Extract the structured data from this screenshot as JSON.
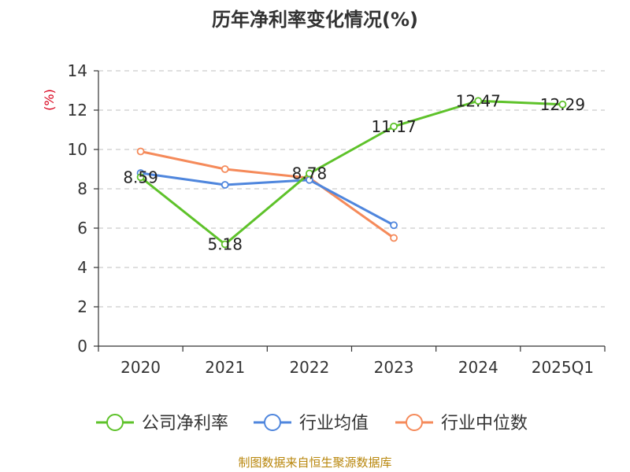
{
  "chart_data": {
    "type": "line",
    "title": "历年净利率变化情况(%)",
    "ylabel": "(%)",
    "categories": [
      "2020",
      "2021",
      "2022",
      "2023",
      "2024",
      "2025Q1"
    ],
    "ylim": [
      0,
      14
    ],
    "yticks": [
      0,
      2,
      4,
      6,
      8,
      10,
      12,
      14
    ],
    "grid": true,
    "legend_position": "bottom",
    "series": [
      {
        "name": "公司净利率",
        "color": "#5ec22a",
        "values": [
          8.59,
          5.18,
          8.78,
          11.17,
          12.47,
          12.29
        ],
        "labels": [
          "8.59",
          "5.18",
          "8.78",
          "11.17",
          "12.47",
          "12.29"
        ]
      },
      {
        "name": "行业均值",
        "color": "#4f86dd",
        "values": [
          8.8,
          8.2,
          8.45,
          6.15,
          null,
          null
        ]
      },
      {
        "name": "行业中位数",
        "color": "#f58a5a",
        "values": [
          9.9,
          9.0,
          8.55,
          5.5,
          null,
          null
        ]
      }
    ]
  },
  "source": "制图数据来自恒生聚源数据库"
}
